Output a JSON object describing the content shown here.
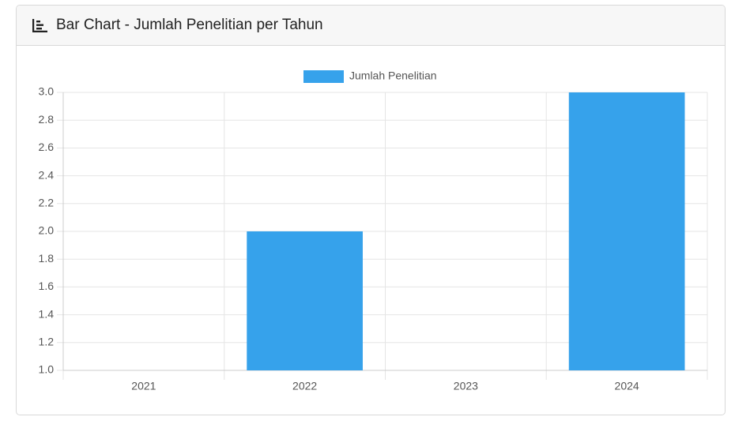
{
  "chart_data": {
    "type": "bar",
    "title": "Bar Chart - Jumlah Penelitian per Tahun",
    "categories": [
      "2021",
      "2022",
      "2023",
      "2024"
    ],
    "series": [
      {
        "name": "Jumlah Penelitian",
        "color": "#36a2eb",
        "values": [
          1,
          2,
          1,
          3
        ]
      }
    ],
    "ylim": [
      1,
      3
    ],
    "yticks": [
      {
        "value": 1,
        "label": "1.0"
      },
      1.2,
      1.4,
      1.6,
      1.8,
      {
        "value": 2,
        "label": "2.0"
      },
      2.2,
      2.4,
      2.6,
      2.8,
      {
        "value": 3,
        "label": "3.0"
      }
    ],
    "grid": true,
    "legend": "top"
  }
}
